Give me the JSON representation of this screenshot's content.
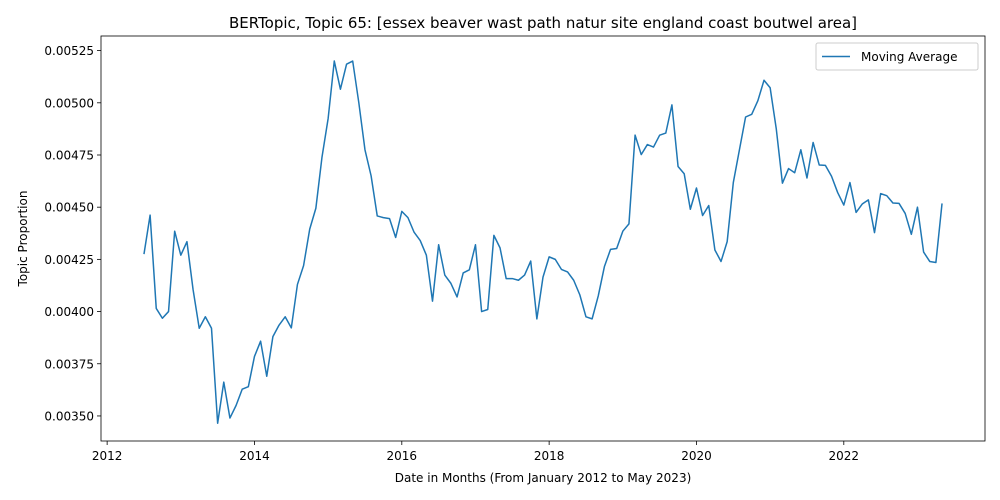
{
  "chart_data": {
    "type": "line",
    "title": "BERTopic, Topic 65: [essex beaver wast path natur site england coast boutwel area]",
    "xlabel": "Date in Months (From January 2012 to May 2023)",
    "ylabel": "Topic Proportion",
    "xlim": [
      "2011-12-01",
      "2023-12-01"
    ],
    "ylim": [
      0.00338,
      0.00532
    ],
    "x_ticks": [
      "2012",
      "2014",
      "2016",
      "2018",
      "2020",
      "2022"
    ],
    "y_ticks": [
      "0.00350",
      "0.00375",
      "0.00400",
      "0.00425",
      "0.00450",
      "0.00475",
      "0.00500",
      "0.00525"
    ],
    "legend_position": "upper right",
    "grid": false,
    "series": [
      {
        "name": "Moving Average",
        "color": "#1f77b4",
        "x": [
          "2012-07",
          "2012-08",
          "2012-09",
          "2012-10",
          "2012-11",
          "2012-12",
          "2013-01",
          "2013-02",
          "2013-03",
          "2013-04",
          "2013-05",
          "2013-06",
          "2013-07",
          "2013-08",
          "2013-09",
          "2013-10",
          "2013-11",
          "2013-12",
          "2014-01",
          "2014-02",
          "2014-03",
          "2014-04",
          "2014-05",
          "2014-06",
          "2014-07",
          "2014-08",
          "2014-09",
          "2014-10",
          "2014-11",
          "2014-12",
          "2015-01",
          "2015-02",
          "2015-03",
          "2015-04",
          "2015-05",
          "2015-06",
          "2015-07",
          "2015-08",
          "2015-09",
          "2015-10",
          "2015-11",
          "2015-12",
          "2016-01",
          "2016-02",
          "2016-03",
          "2016-04",
          "2016-05",
          "2016-06",
          "2016-07",
          "2016-08",
          "2016-09",
          "2016-10",
          "2016-11",
          "2016-12",
          "2017-01",
          "2017-02",
          "2017-03",
          "2017-04",
          "2017-05",
          "2017-06",
          "2017-07",
          "2017-08",
          "2017-09",
          "2017-10",
          "2017-11",
          "2017-12",
          "2018-01",
          "2018-02",
          "2018-03",
          "2018-04",
          "2018-05",
          "2018-06",
          "2018-07",
          "2018-08",
          "2018-09",
          "2018-10",
          "2018-11",
          "2018-12",
          "2019-01",
          "2019-02",
          "2019-03",
          "2019-04",
          "2019-05",
          "2019-06",
          "2019-07",
          "2019-08",
          "2019-09",
          "2019-10",
          "2019-11",
          "2019-12",
          "2020-01",
          "2020-02",
          "2020-03",
          "2020-04",
          "2020-05",
          "2020-06",
          "2020-07",
          "2020-08",
          "2020-09",
          "2020-10",
          "2020-11",
          "2020-12",
          "2021-01",
          "2021-02",
          "2021-03",
          "2021-04",
          "2021-05",
          "2021-06",
          "2021-07",
          "2021-08",
          "2021-09",
          "2021-10",
          "2021-11",
          "2021-12",
          "2022-01",
          "2022-02",
          "2022-03",
          "2022-04",
          "2022-05",
          "2022-06",
          "2022-07",
          "2022-08",
          "2022-09",
          "2022-10",
          "2022-11",
          "2022-12",
          "2023-01",
          "2023-02",
          "2023-03",
          "2023-04",
          "2023-05"
        ],
        "values": [
          0.004275,
          0.004462,
          0.004015,
          0.003968,
          0.004,
          0.004385,
          0.00427,
          0.004335,
          0.004105,
          0.00392,
          0.003975,
          0.00392,
          0.003465,
          0.003662,
          0.00349,
          0.00355,
          0.003628,
          0.00364,
          0.003785,
          0.003858,
          0.00369,
          0.00388,
          0.003935,
          0.003975,
          0.003922,
          0.00413,
          0.00422,
          0.004395,
          0.004495,
          0.00474,
          0.004925,
          0.0052,
          0.005065,
          0.005185,
          0.0052,
          0.005,
          0.004775,
          0.00465,
          0.004458,
          0.00445,
          0.004445,
          0.004355,
          0.00448,
          0.00445,
          0.00438,
          0.00434,
          0.00427,
          0.00405,
          0.00432,
          0.004175,
          0.004135,
          0.00407,
          0.004185,
          0.0042,
          0.00432,
          0.004,
          0.00401,
          0.004365,
          0.004305,
          0.004158,
          0.004158,
          0.00415,
          0.004175,
          0.004242,
          0.003965,
          0.004165,
          0.004262,
          0.00425,
          0.004202,
          0.00419,
          0.00415,
          0.00408,
          0.003975,
          0.003965,
          0.004075,
          0.004215,
          0.004298,
          0.004302,
          0.004385,
          0.00442,
          0.004845,
          0.004752,
          0.0048,
          0.004788,
          0.004845,
          0.004855,
          0.00499,
          0.004695,
          0.00466,
          0.00449,
          0.004592,
          0.00446,
          0.004508,
          0.004295,
          0.00424,
          0.004335,
          0.004618,
          0.004775,
          0.004932,
          0.004945,
          0.00501,
          0.005108,
          0.005072,
          0.004875,
          0.004615,
          0.004685,
          0.004665,
          0.004775,
          0.00464,
          0.00481,
          0.004702,
          0.0047,
          0.004648,
          0.00457,
          0.00451,
          0.004618,
          0.004475,
          0.004515,
          0.004535,
          0.004378,
          0.004565,
          0.004555,
          0.00452,
          0.004518,
          0.00447,
          0.00437,
          0.0045,
          0.004285,
          0.00424,
          0.004235,
          0.004518
        ]
      }
    ]
  }
}
